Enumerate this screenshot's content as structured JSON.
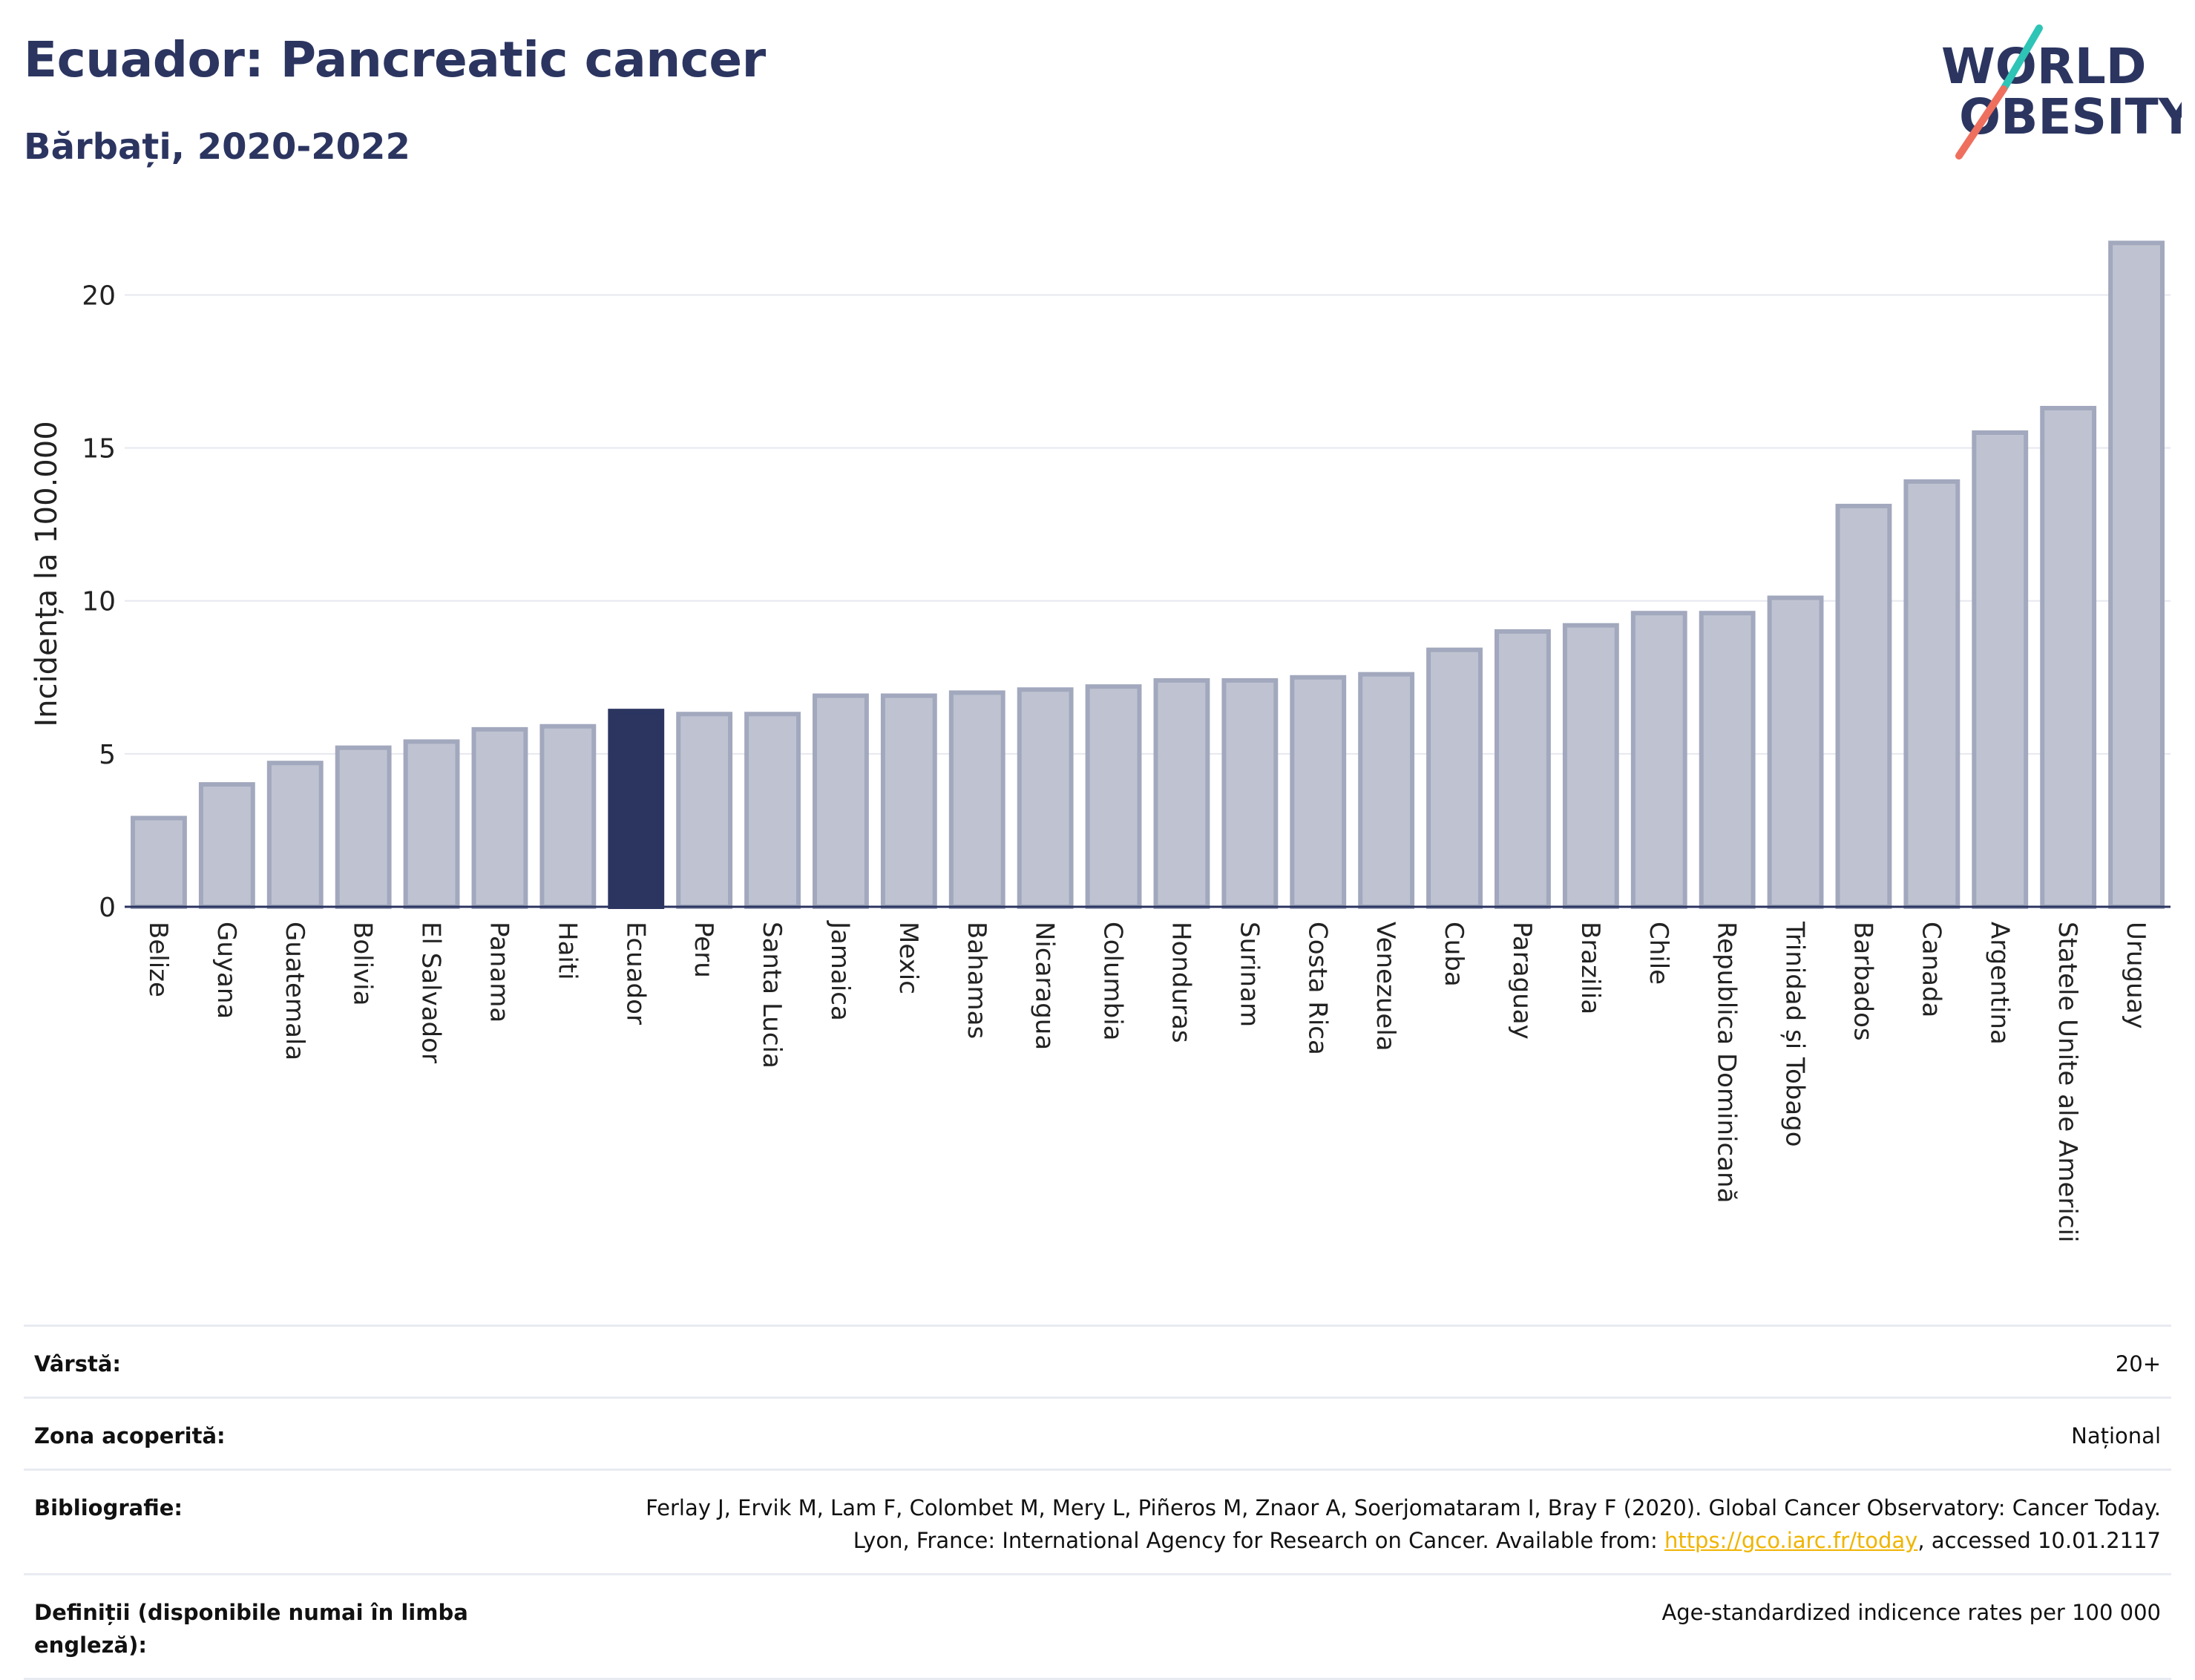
{
  "header": {
    "title": "Ecuador: Pancreatic cancer",
    "subtitle": "Bărbați, 2020-2022"
  },
  "logo": {
    "line1": "WORLD",
    "line2": "OBESITY",
    "accent_teal": "#2ec4b6",
    "accent_coral": "#ef6f5e"
  },
  "colors": {
    "bar_fill": "#bfc3d1",
    "bar_stroke": "#a2a8bd",
    "highlight_fill": "#2b3560",
    "text": "#2b3560",
    "grid": "#e6e8ef",
    "link": "#f0b400"
  },
  "chart_data": {
    "type": "bar",
    "ylabel": "Incidența la 100.000",
    "ylim": [
      0,
      22
    ],
    "yticks": [
      0,
      5,
      10,
      15,
      20
    ],
    "grid": true,
    "highlight": "Ecuador",
    "categories": [
      "Belize",
      "Guyana",
      "Guatemala",
      "Bolivia",
      "El Salvador",
      "Panama",
      "Haiti",
      "Ecuador",
      "Peru",
      "Santa Lucia",
      "Jamaica",
      "Mexic",
      "Bahamas",
      "Nicaragua",
      "Columbia",
      "Honduras",
      "Surinam",
      "Costa Rica",
      "Venezuela",
      "Cuba",
      "Paraguay",
      "Brazilia",
      "Chile",
      "Republica Dominicană",
      "Trinidad și Tobago",
      "Barbados",
      "Canada",
      "Argentina",
      "Statele Unite ale Americii",
      "Uruguay"
    ],
    "values": [
      2.9,
      4.0,
      4.7,
      5.2,
      5.4,
      5.8,
      5.9,
      6.4,
      6.3,
      6.3,
      6.9,
      6.9,
      7.0,
      7.1,
      7.2,
      7.4,
      7.4,
      7.5,
      7.6,
      8.4,
      9.0,
      9.2,
      9.6,
      9.6,
      10.1,
      13.1,
      13.9,
      15.5,
      16.3,
      21.7
    ]
  },
  "meta": [
    {
      "label": "Vârstă:",
      "value": "20+"
    },
    {
      "label": "Zona acoperită:",
      "value": "Național"
    },
    {
      "label": "Bibliografie:",
      "value_pre": "Ferlay J, Ervik M, Lam F, Colombet M, Mery L, Piñeros M, Znaor A, Soerjomataram I, Bray F (2020). Global Cancer Observatory: Cancer Today. Lyon, France: International Agency for Research on Cancer. Available from: ",
      "link": "https://gco.iarc.fr/today",
      "value_post": ", accessed 10.01.2117"
    },
    {
      "label": "Definiții (disponibile numai în limba engleză):",
      "value": "Age-standardized indicence rates per 100 000"
    }
  ]
}
